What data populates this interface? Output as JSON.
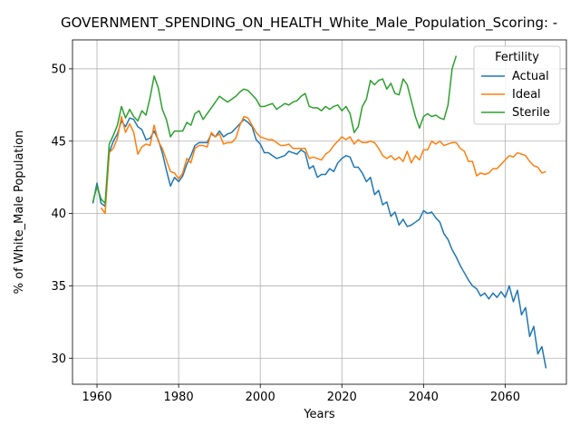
{
  "chart_data": {
    "type": "line",
    "title": "GOVERNMENT_SPENDING_ON_HEALTH_White_Male_Population_Scoring: -",
    "xlabel": "Years",
    "ylabel": "% of White_Male Population",
    "xlim": [
      1954,
      2075
    ],
    "ylim": [
      28.2,
      52
    ],
    "xticks": [
      1960,
      1980,
      2000,
      2020,
      2040,
      2060
    ],
    "yticks": [
      30,
      35,
      40,
      45,
      50
    ],
    "grid": true,
    "legend": {
      "title": "Fertility",
      "placement": "top-right"
    },
    "x": [
      1959,
      1960,
      1961,
      1962,
      1963,
      1964,
      1965,
      1966,
      1967,
      1968,
      1969,
      1970,
      1971,
      1972,
      1973,
      1974,
      1975,
      1976,
      1977,
      1978,
      1979,
      1980,
      1981,
      1982,
      1983,
      1984,
      1985,
      1986,
      1987,
      1988,
      1989,
      1990,
      1991,
      1992,
      1993,
      1994,
      1995,
      1996,
      1997,
      1998,
      1999,
      2000,
      2001,
      2002,
      2003,
      2004,
      2005,
      2006,
      2007,
      2008,
      2009,
      2010,
      2011,
      2012,
      2013,
      2014,
      2015,
      2016,
      2017,
      2018,
      2019,
      2020,
      2021,
      2022,
      2023,
      2024,
      2025,
      2026,
      2027,
      2028,
      2029,
      2030,
      2031,
      2032,
      2033,
      2034,
      2035,
      2036,
      2037,
      2038,
      2039,
      2040,
      2041,
      2042,
      2043,
      2044,
      2045,
      2046,
      2047,
      2048,
      2049,
      2050,
      2051,
      2052,
      2053,
      2054,
      2055,
      2056,
      2057,
      2058,
      2059,
      2060,
      2061,
      2062,
      2063,
      2064,
      2065,
      2066,
      2067,
      2068,
      2069,
      2070
    ],
    "series": [
      {
        "name": "Actual",
        "color": "#1f77b4",
        "values": [
          40.7,
          42.1,
          40.7,
          40.5,
          44.2,
          45.0,
          45.5,
          46.4,
          46.0,
          46.6,
          46.5,
          46.0,
          45.8,
          45.1,
          45.2,
          45.7,
          45.1,
          44.2,
          43.0,
          41.9,
          42.5,
          42.2,
          42.6,
          43.4,
          44.0,
          44.7,
          44.9,
          44.9,
          44.9,
          45.5,
          45.3,
          45.7,
          45.3,
          45.5,
          45.6,
          45.9,
          46.2,
          46.5,
          46.3,
          46.0,
          45.1,
          44.8,
          44.2,
          44.2,
          44.0,
          43.8,
          43.9,
          44.0,
          44.3,
          44.2,
          44.1,
          44.4,
          44.2,
          43.1,
          43.3,
          42.5,
          42.7,
          42.7,
          43.1,
          42.9,
          43.5,
          43.8,
          44.0,
          43.9,
          43.2,
          43.2,
          42.8,
          42.2,
          42.5,
          41.3,
          41.6,
          40.6,
          40.8,
          39.8,
          40.1,
          39.2,
          39.6,
          39.1,
          39.2,
          39.4,
          39.6,
          40.2,
          40.0,
          40.1,
          39.7,
          39.4,
          38.6,
          38.2,
          37.5,
          37.0,
          36.4,
          35.9,
          35.4,
          35.0,
          34.8,
          34.3,
          34.5,
          34.1,
          34.5,
          34.2,
          34.6,
          34.2,
          35.0,
          33.9,
          34.7,
          33.0,
          33.5,
          31.5,
          32.2,
          30.3,
          30.8,
          29.3
        ]
      },
      {
        "name": "Ideal",
        "color": "#ff7f0e",
        "values": [
          null,
          null,
          40.4,
          40.0,
          44.2,
          44.5,
          45.2,
          46.7,
          45.6,
          46.2,
          45.6,
          44.1,
          44.6,
          44.8,
          44.7,
          46.1,
          45.0,
          44.5,
          43.7,
          42.9,
          42.8,
          42.4,
          42.8,
          43.8,
          43.5,
          44.5,
          44.7,
          44.7,
          44.6,
          45.6,
          45.3,
          45.5,
          44.8,
          44.9,
          44.9,
          45.2,
          46.1,
          46.7,
          46.6,
          46.1,
          45.6,
          45.3,
          45.2,
          45.1,
          45.1,
          44.9,
          44.7,
          44.7,
          44.8,
          44.5,
          44.5,
          44.5,
          44.5,
          43.8,
          43.9,
          43.8,
          43.7,
          44.1,
          44.3,
          44.7,
          45.0,
          45.3,
          45.1,
          45.3,
          44.8,
          45.1,
          44.9,
          44.9,
          45.0,
          44.9,
          44.5,
          44.0,
          43.8,
          44.0,
          43.7,
          43.9,
          43.6,
          44.3,
          43.5,
          44.0,
          43.7,
          44.4,
          44.4,
          45.0,
          44.8,
          45.0,
          44.7,
          44.8,
          44.9,
          44.9,
          44.5,
          44.3,
          43.6,
          43.6,
          42.6,
          42.8,
          42.7,
          42.8,
          43.1,
          43.1,
          43.4,
          43.7,
          44.0,
          43.9,
          44.2,
          44.1,
          44.0,
          43.6,
          43.3,
          43.2,
          42.8,
          42.9
        ]
      },
      {
        "name": "Sterile",
        "color": "#2ca02c",
        "values": [
          40.8,
          41.9,
          41.0,
          40.7,
          44.8,
          45.4,
          46.1,
          47.4,
          46.6,
          47.2,
          46.7,
          46.4,
          47.1,
          46.8,
          48.0,
          49.5,
          48.7,
          47.2,
          46.5,
          45.3,
          45.7,
          45.7,
          45.7,
          46.3,
          46.1,
          46.9,
          47.1,
          46.5,
          46.9,
          47.3,
          47.7,
          48.1,
          47.9,
          47.7,
          47.9,
          48.1,
          48.4,
          48.6,
          48.5,
          48.2,
          47.9,
          47.4,
          47.4,
          47.5,
          47.6,
          47.2,
          47.4,
          47.6,
          47.5,
          47.7,
          47.8,
          48.1,
          48.3,
          47.4,
          47.3,
          47.3,
          47.1,
          47.4,
          47.2,
          47.4,
          47.5,
          47.1,
          47.4,
          46.9,
          45.6,
          46.0,
          47.4,
          47.9,
          49.2,
          48.9,
          49.2,
          49.3,
          48.6,
          49.0,
          48.3,
          48.2,
          49.3,
          48.9,
          47.8,
          46.7,
          45.9,
          46.7,
          46.9,
          46.7,
          46.8,
          46.6,
          46.5,
          47.5,
          50.0,
          50.9,
          null,
          null,
          null,
          null,
          null,
          null,
          null,
          null,
          null,
          null,
          null,
          null,
          null,
          null,
          null,
          null,
          null,
          null,
          null,
          null,
          null,
          null
        ]
      }
    ]
  }
}
